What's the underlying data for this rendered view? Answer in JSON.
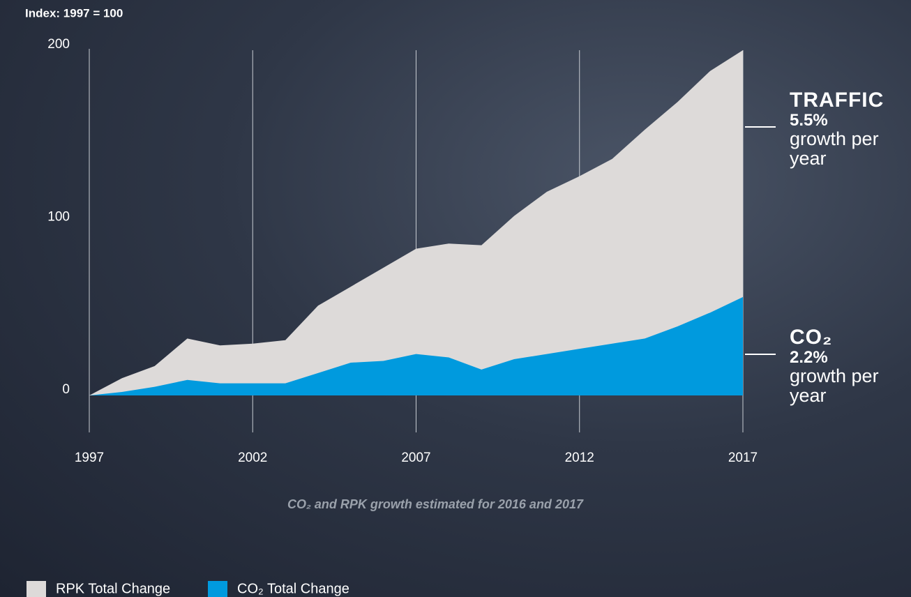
{
  "chart_data": {
    "type": "area",
    "ylabel": "Index: 1997 = 100",
    "x": [
      1997,
      1998,
      1999,
      2000,
      2001,
      2002,
      2003,
      2004,
      2005,
      2006,
      2007,
      2008,
      2009,
      2010,
      2011,
      2012,
      2013,
      2014,
      2015,
      2016,
      2017
    ],
    "series": [
      {
        "name": "RPK Total Change",
        "color": "#dddad9",
        "values": [
          0,
          10,
          17,
          33,
          29,
          30,
          32,
          52,
          63,
          74,
          85,
          88,
          87,
          104,
          118,
          127,
          137,
          154,
          170,
          188,
          200
        ]
      },
      {
        "name": "CO₂ Total Change",
        "color": "#009ade",
        "values": [
          0,
          2,
          5,
          9,
          7,
          7,
          7,
          13,
          19,
          20,
          24,
          22,
          15,
          21,
          24,
          27,
          30,
          33,
          40,
          48,
          57
        ]
      }
    ],
    "xlim": [
      1997,
      2017
    ],
    "xticks": [
      1997,
      2002,
      2007,
      2012,
      2017
    ],
    "ylim": [
      0,
      200
    ],
    "yticks": [
      0,
      100,
      200
    ],
    "annotations": [
      {
        "title": "TRAFFIC",
        "rate": "5.5%",
        "text": "growth per year"
      },
      {
        "title": "CO₂",
        "rate": "2.2%",
        "text": "growth per year"
      }
    ],
    "note": "CO₂ and RPK growth estimated for 2016 and 2017"
  }
}
